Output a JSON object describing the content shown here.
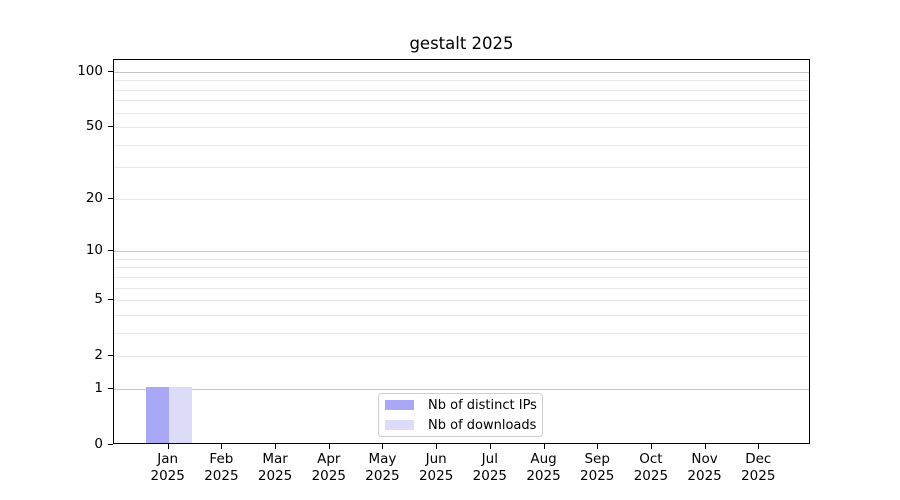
{
  "figure": {
    "title": "gestalt 2025"
  },
  "chart_data": {
    "type": "bar",
    "title": "gestalt 2025",
    "categories": [
      {
        "month": "Jan",
        "year": "2025"
      },
      {
        "month": "Feb",
        "year": "2025"
      },
      {
        "month": "Mar",
        "year": "2025"
      },
      {
        "month": "Apr",
        "year": "2025"
      },
      {
        "month": "May",
        "year": "2025"
      },
      {
        "month": "Jun",
        "year": "2025"
      },
      {
        "month": "Jul",
        "year": "2025"
      },
      {
        "month": "Aug",
        "year": "2025"
      },
      {
        "month": "Sep",
        "year": "2025"
      },
      {
        "month": "Oct",
        "year": "2025"
      },
      {
        "month": "Nov",
        "year": "2025"
      },
      {
        "month": "Dec",
        "year": "2025"
      }
    ],
    "series": [
      {
        "name": "Nb of distinct IPs",
        "color": "#a8a8f5",
        "values": [
          1,
          0,
          0,
          0,
          0,
          0,
          0,
          0,
          0,
          0,
          0,
          0
        ]
      },
      {
        "name": "Nb of downloads",
        "color": "#dcdcf8",
        "values": [
          1,
          0,
          0,
          0,
          0,
          0,
          0,
          0,
          0,
          0,
          0,
          0
        ]
      }
    ],
    "xlabel": "",
    "ylabel": "",
    "yscale": "log1p",
    "ylim": [
      0,
      116
    ],
    "yticks": [
      0,
      1,
      2,
      5,
      10,
      20,
      50,
      100
    ],
    "grid_major_values": [
      1,
      10,
      100
    ],
    "grid_minor_values": [
      2,
      3,
      4,
      5,
      6,
      7,
      8,
      9,
      20,
      30,
      40,
      50,
      60,
      70,
      80,
      90
    ],
    "grid": "both",
    "legend_position": "lower center"
  }
}
